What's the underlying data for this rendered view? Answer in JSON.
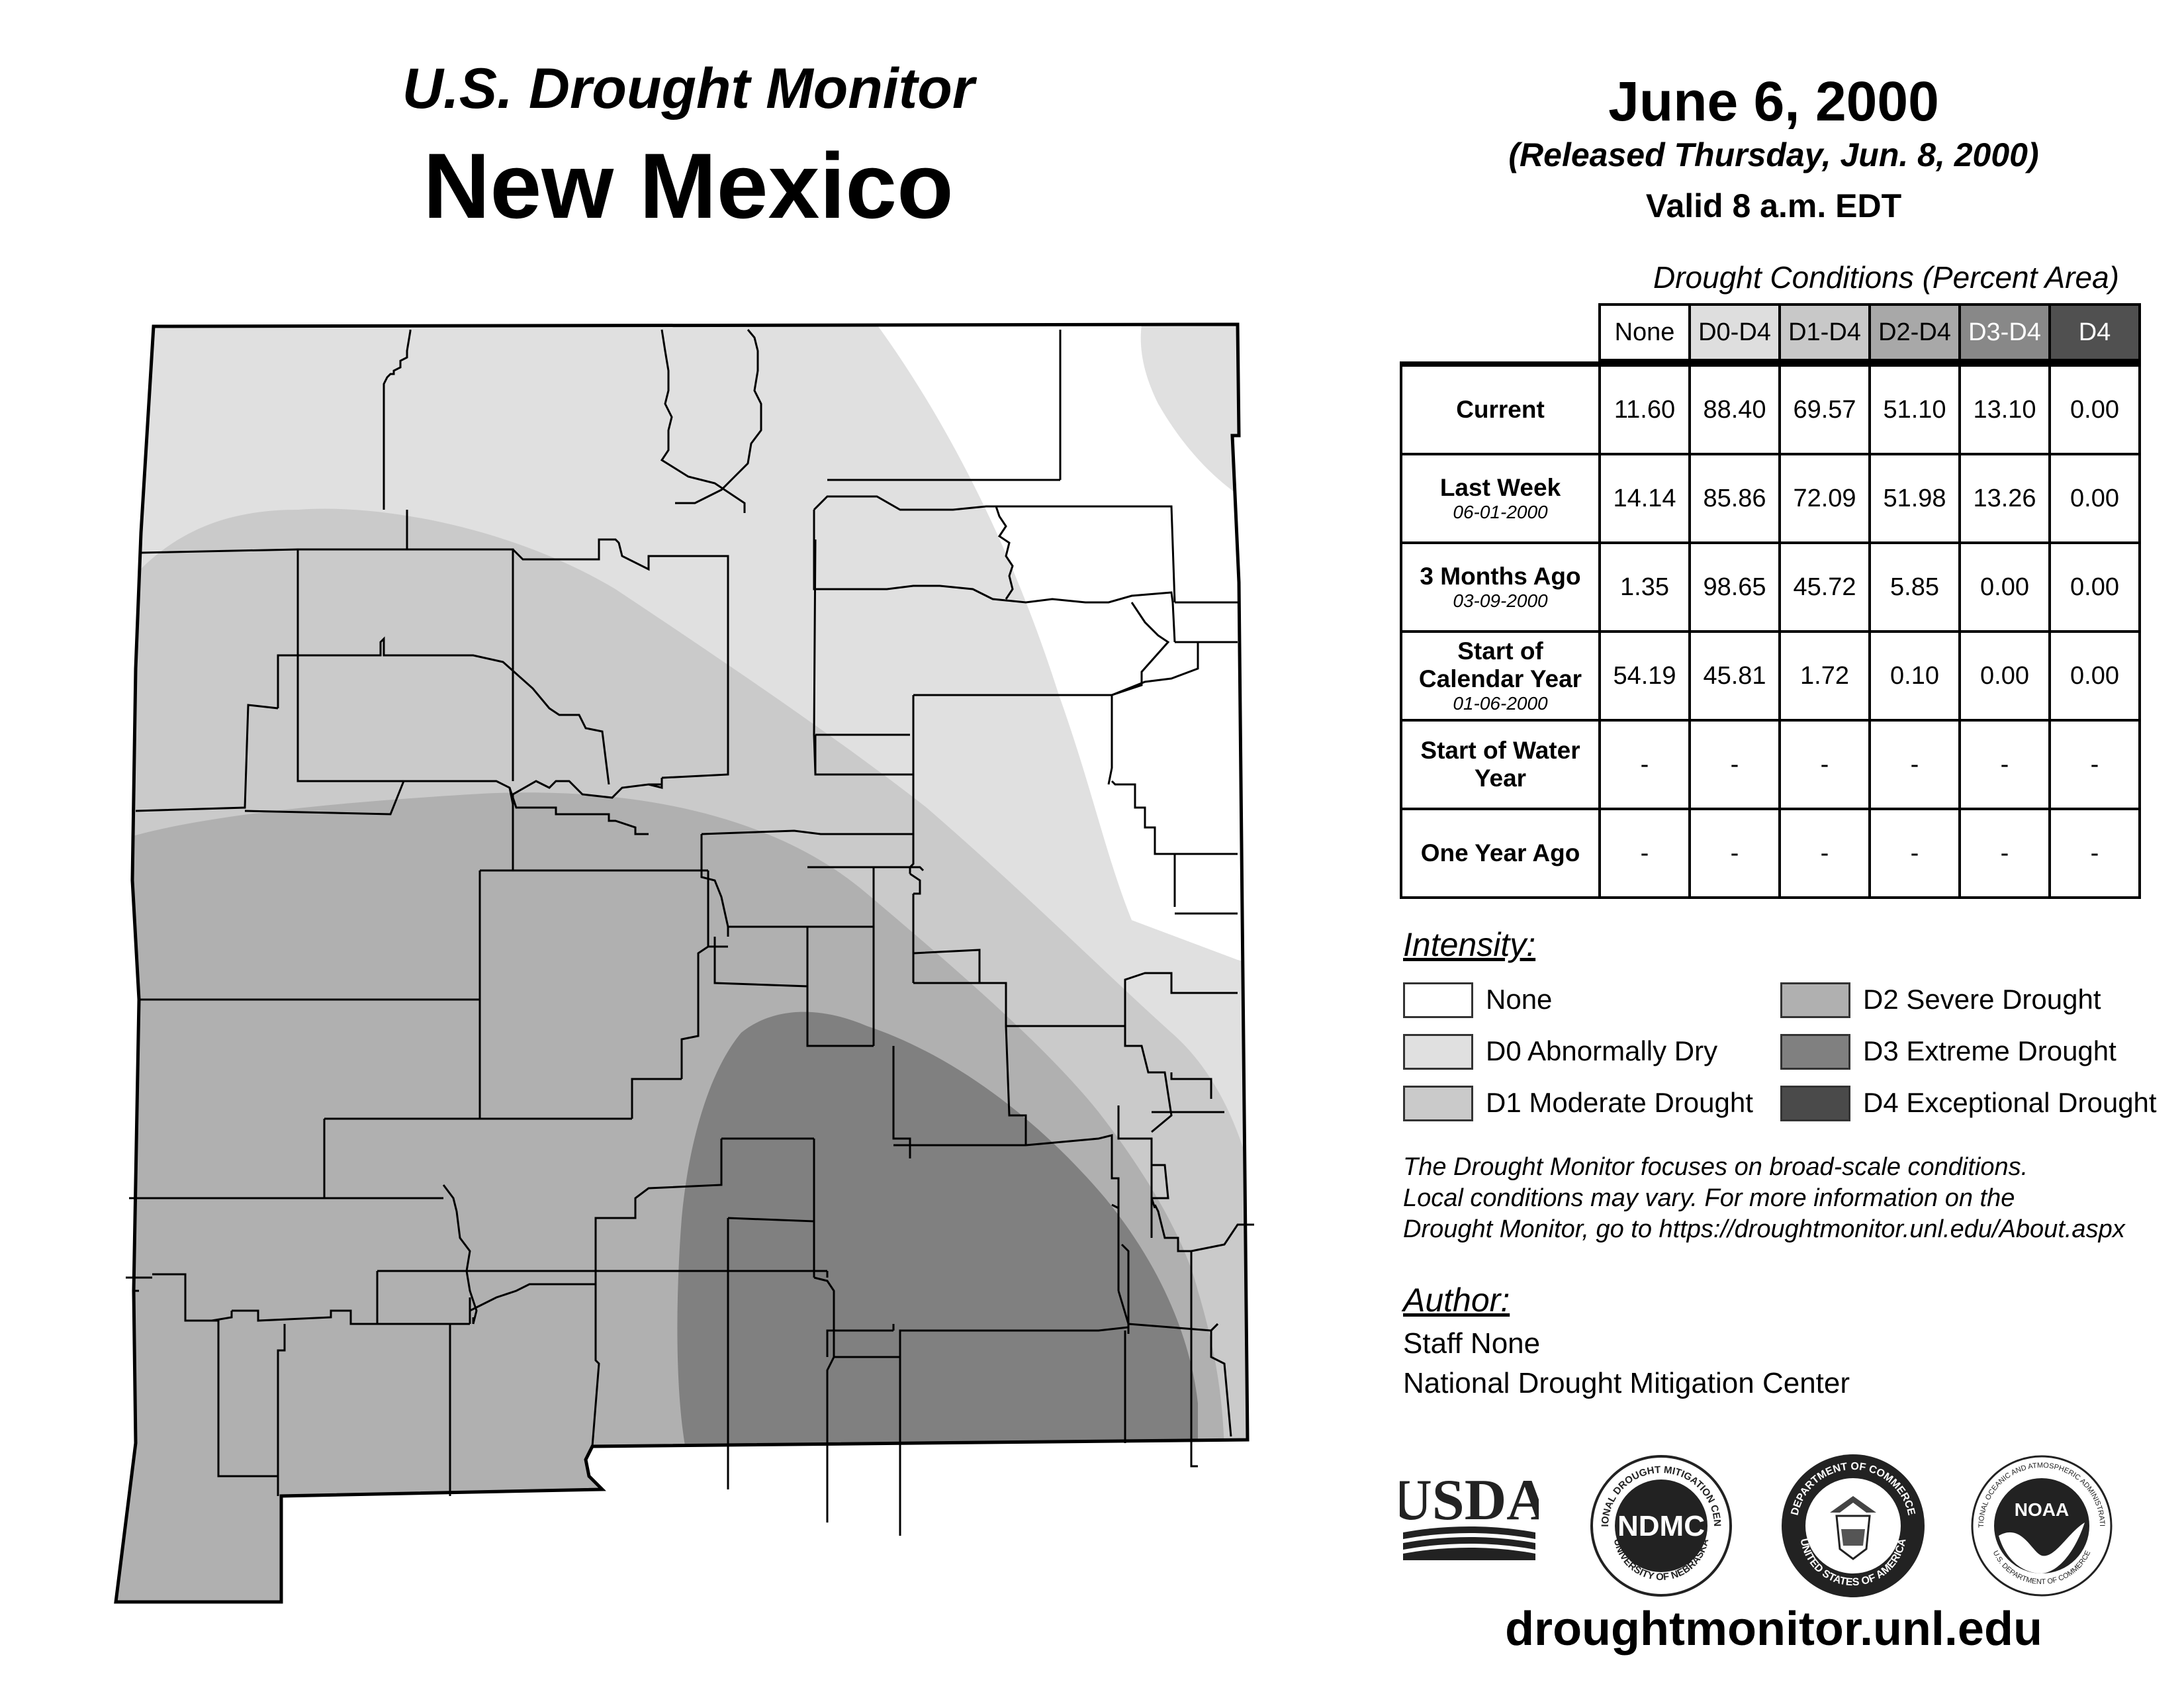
{
  "header": {
    "title": "U.S. Drought Monitor",
    "state": "New Mexico",
    "date": "June 6, 2000",
    "released": "(Released Thursday, Jun. 8, 2000)",
    "valid": "Valid 8 a.m. EDT"
  },
  "table": {
    "caption": "Drought Conditions (Percent Area)",
    "columns": [
      "None",
      "D0-D4",
      "D1-D4",
      "D2-D4",
      "D3-D4",
      "D4"
    ],
    "column_colors": [
      "#ffffff",
      "#dedede",
      "#c8c8c8",
      "#a8a8a8",
      "#888888",
      "#505050"
    ],
    "rows": [
      {
        "label": "Current",
        "date": "",
        "values": [
          "11.60",
          "88.40",
          "69.57",
          "51.10",
          "13.10",
          "0.00"
        ]
      },
      {
        "label": "Last Week",
        "date": "06-01-2000",
        "values": [
          "14.14",
          "85.86",
          "72.09",
          "51.98",
          "13.26",
          "0.00"
        ]
      },
      {
        "label": "3 Months Ago",
        "date": "03-09-2000",
        "values": [
          "1.35",
          "98.65",
          "45.72",
          "5.85",
          "0.00",
          "0.00"
        ]
      },
      {
        "label": "Start of Calendar Year",
        "date": "01-06-2000",
        "values": [
          "54.19",
          "45.81",
          "1.72",
          "0.10",
          "0.00",
          "0.00"
        ]
      },
      {
        "label": "Start of Water Year",
        "date": "",
        "values": [
          "-",
          "-",
          "-",
          "-",
          "-",
          "-"
        ]
      },
      {
        "label": "One Year Ago",
        "date": "",
        "values": [
          "-",
          "-",
          "-",
          "-",
          "-",
          "-"
        ]
      }
    ]
  },
  "legend": {
    "heading": "Intensity:",
    "items": [
      {
        "label": "None",
        "color": "#ffffff"
      },
      {
        "label": "D0 Abnormally Dry",
        "color": "#e0e0e0"
      },
      {
        "label": "D1 Moderate Drought",
        "color": "#cacaca"
      },
      {
        "label": "D2 Severe Drought",
        "color": "#b0b0b0"
      },
      {
        "label": "D3 Extreme Drought",
        "color": "#808080"
      },
      {
        "label": "D4 Exceptional Drought",
        "color": "#4a4a4a"
      }
    ]
  },
  "note": {
    "line1": "The Drought Monitor focuses on broad-scale conditions.",
    "line2": "Local conditions may vary. For more information on the",
    "line3": "Drought Monitor, go to https://droughtmonitor.unl.edu/About.aspx"
  },
  "author": {
    "heading": "Author:",
    "name": "Staff None",
    "org": "National Drought Mitigation Center"
  },
  "logos": {
    "usda": "USDA",
    "ndmc": "NDMC",
    "ndmc_ring_top": "NATIONAL DROUGHT MITIGATION CENTER",
    "ndmc_ring_bottom": "UNIVERSITY OF NEBRASKA",
    "doc_ring_top": "DEPARTMENT OF COMMERCE",
    "doc_ring_bottom": "UNITED STATES OF AMERICA",
    "noaa": "NOAA",
    "noaa_ring_top": "NATIONAL OCEANIC AND ATMOSPHERIC ADMINISTRATION",
    "noaa_ring_bottom": "U.S. DEPARTMENT OF COMMERCE"
  },
  "footer": {
    "url": "droughtmonitor.unl.edu"
  }
}
